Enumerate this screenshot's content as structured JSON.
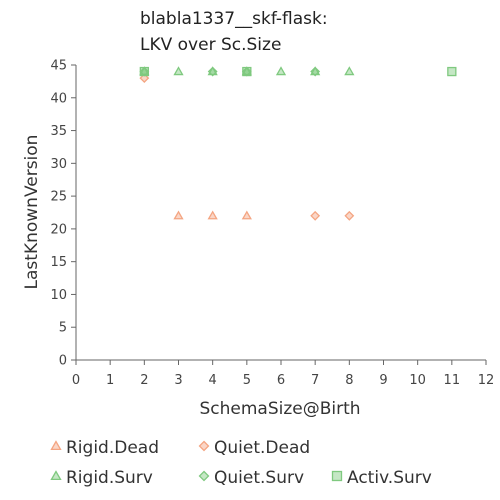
{
  "chart_data": {
    "type": "scatter",
    "title_lines": [
      "blabla1337__skf-flask:",
      "LKV over Sc.Size"
    ],
    "xlabel": "SchemaSize@Birth",
    "ylabel": "LastKnownVersion",
    "xlim": [
      0,
      12
    ],
    "ylim": [
      0,
      45
    ],
    "xticks": [
      0,
      1,
      2,
      3,
      4,
      5,
      6,
      7,
      8,
      9,
      10,
      11,
      12
    ],
    "yticks": [
      0,
      5,
      10,
      15,
      20,
      25,
      30,
      35,
      40,
      45
    ],
    "grid": false,
    "legend_position": "bottom",
    "series": [
      {
        "name": "Rigid.Dead",
        "marker": "triangle",
        "color": "#f4a582",
        "points": [
          [
            3,
            22
          ],
          [
            4,
            22
          ],
          [
            5,
            22
          ]
        ]
      },
      {
        "name": "Quiet.Dead",
        "marker": "diamond",
        "color": "#f4a582",
        "points": [
          [
            2,
            43
          ],
          [
            7,
            22
          ],
          [
            8,
            22
          ]
        ]
      },
      {
        "name": "Rigid.Surv",
        "marker": "triangle",
        "color": "#7fc97f",
        "points": [
          [
            2,
            44
          ],
          [
            3,
            44
          ],
          [
            4,
            44
          ],
          [
            5,
            44
          ],
          [
            6,
            44
          ],
          [
            7,
            44
          ],
          [
            8,
            44
          ]
        ]
      },
      {
        "name": "Quiet.Surv",
        "marker": "diamond",
        "color": "#7fc97f",
        "points": [
          [
            2,
            44
          ],
          [
            4,
            44
          ],
          [
            5,
            44
          ],
          [
            7,
            44
          ]
        ]
      },
      {
        "name": "Activ.Surv",
        "marker": "square",
        "color": "#7fc97f",
        "points": [
          [
            2,
            44
          ],
          [
            5,
            44
          ],
          [
            11,
            44
          ]
        ]
      }
    ]
  }
}
